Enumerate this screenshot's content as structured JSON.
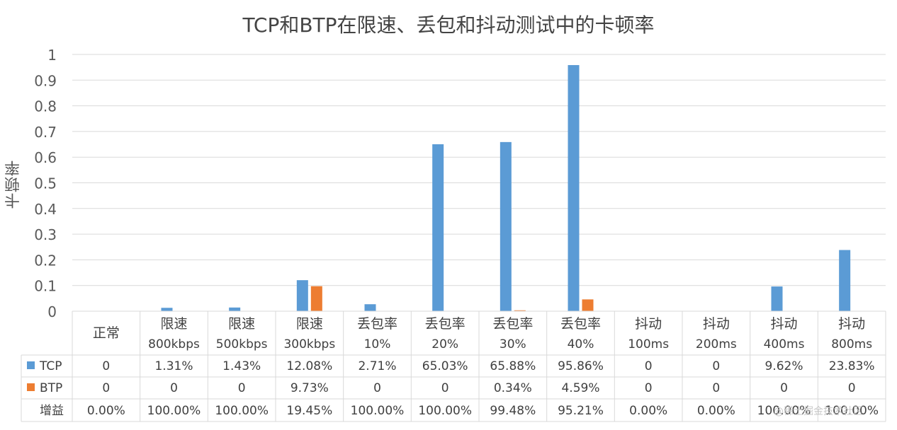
{
  "chart_data": {
    "type": "bar",
    "title": "TCP和BTP在限速、丢包和抖动测试中的卡顿率",
    "ylabel": "卡顿率",
    "xlabel": "",
    "ylim": [
      0,
      1
    ],
    "yticks": [
      "0",
      "0.1",
      "0.2",
      "0.3",
      "0.4",
      "0.5",
      "0.6",
      "0.7",
      "0.8",
      "0.9",
      "1"
    ],
    "grid": true,
    "data_table": true,
    "categories": [
      {
        "line1": "正常",
        "line2": ""
      },
      {
        "line1": "限速",
        "line2": "800kbps"
      },
      {
        "line1": "限速",
        "line2": "500kbps"
      },
      {
        "line1": "限速",
        "line2": "300kbps"
      },
      {
        "line1": "丢包率",
        "line2": "10%"
      },
      {
        "line1": "丢包率",
        "line2": "20%"
      },
      {
        "line1": "丢包率",
        "line2": "30%"
      },
      {
        "line1": "丢包率",
        "line2": "40%"
      },
      {
        "line1": "抖动",
        "line2": "100ms"
      },
      {
        "line1": "抖动",
        "line2": "200ms"
      },
      {
        "line1": "抖动",
        "line2": "400ms"
      },
      {
        "line1": "抖动",
        "line2": "800ms"
      }
    ],
    "series": [
      {
        "name": "TCP",
        "color": "#5b9bd5",
        "values": [
          0,
          0.0131,
          0.0143,
          0.1208,
          0.0271,
          0.6503,
          0.6588,
          0.9586,
          0,
          0,
          0.0962,
          0.2383
        ],
        "labels": [
          "0",
          "1.31%",
          "1.43%",
          "12.08%",
          "2.71%",
          "65.03%",
          "65.88%",
          "95.86%",
          "0",
          "0",
          "9.62%",
          "23.83%"
        ]
      },
      {
        "name": "BTP",
        "color": "#ed7d31",
        "values": [
          0,
          0,
          0,
          0.0973,
          0,
          0,
          0.0034,
          0.0459,
          0,
          0,
          0,
          0
        ],
        "labels": [
          "0",
          "0",
          "0",
          "9.73%",
          "0",
          "0",
          "0.34%",
          "4.59%",
          "0",
          "0",
          "0",
          "0"
        ]
      }
    ],
    "extra_row": {
      "name": "增益",
      "labels": [
        "0.00%",
        "100.00%",
        "100.00%",
        "19.45%",
        "100.00%",
        "100.00%",
        "99.48%",
        "95.21%",
        "0.00%",
        "0.00%",
        "100.00%",
        "100.00%"
      ]
    },
    "watermark": "@稀土掘金技术社区"
  }
}
